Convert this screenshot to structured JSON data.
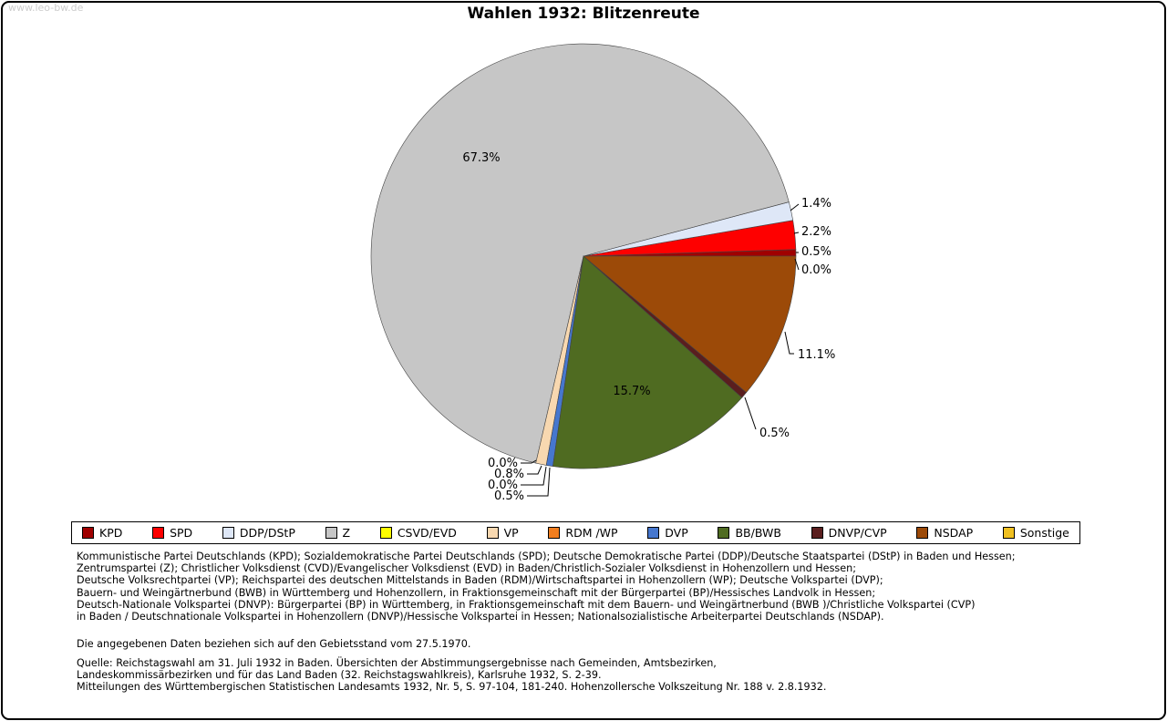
{
  "page": {
    "watermark": "www.leo-bw.de",
    "title": "Wahlen 1932: Blitzenreute"
  },
  "chart_data": {
    "type": "pie",
    "title": "Wahlen 1932: Blitzenreute",
    "unit": "percent",
    "start_angle_deg": 0,
    "direction": "counterclockwise",
    "legend_position": "bottom",
    "series": [
      {
        "name": "KPD",
        "value": 0.5,
        "color": "#a00000"
      },
      {
        "name": "SPD",
        "value": 2.2,
        "color": "#fe0000"
      },
      {
        "name": "DDP/DStP",
        "value": 1.4,
        "color": "#dee7f7"
      },
      {
        "name": "Z",
        "value": 67.3,
        "color": "#c6c6c6"
      },
      {
        "name": "CSVD/EVD",
        "value": 0.0,
        "color": "#ffff00"
      },
      {
        "name": "VP",
        "value": 0.8,
        "color": "#f8d8b0"
      },
      {
        "name": "RDM /WP",
        "value": 0.0,
        "color": "#f07d1e"
      },
      {
        "name": "DVP",
        "value": 0.5,
        "color": "#4677ce"
      },
      {
        "name": "BB/BWB",
        "value": 15.7,
        "color": "#4f6b21"
      },
      {
        "name": "DNVP/CVP",
        "value": 0.5,
        "color": "#5a1e1e"
      },
      {
        "name": "NSDAP",
        "value": 11.1,
        "color": "#9c4a08"
      },
      {
        "name": "Sonstige",
        "value": 0.0,
        "color": "#f0c020"
      }
    ]
  },
  "footer": {
    "party_definitions": [
      "Kommunistische Partei Deutschlands (KPD); Sozialdemokratische Partei Deutschlands (SPD); Deutsche Demokratische Partei (DDP)/Deutsche Staatspartei (DStP) in Baden und Hessen;",
      "Zentrumspartei (Z); Christlicher Volksdienst (CVD)/Evangelischer Volksdienst (EVD) in Baden/Christlich-Sozialer Volksdienst in Hohenzollern und Hessen;",
      "Deutsche Volksrechtpartei (VP); Reichspartei des deutschen Mittelstands in Baden (RDM)/Wirtschaftspartei in Hohenzollern (WP); Deutsche Volkspartei (DVP);",
      "Bauern- und Weingärtnerbund (BWB) in Württemberg und Hohenzollern, in Fraktionsgemeinschaft mit der Bürgerpartei (BP)/Hessisches Landvolk in Hessen;",
      "Deutsch-Nationale Volkspartei (DNVP): Bürgerpartei (BP) in Württemberg, in Fraktionsgemeinschaft mit dem Bauern- und Weingärtnerbund (BWB )/Christliche Volkspartei (CVP)",
      "in Baden / Deutschnationale Volkspartei in Hohenzollern (DNVP)/Hessische Volkspartei in Hessen; Nationalsozialistische Arbeiterpartei Deutschlands (NSDAP)."
    ],
    "note": "Die angegebenen Daten beziehen sich auf den Gebietsstand vom 27.5.1970.",
    "source": [
      "Quelle: Reichstagswahl am 31. Juli 1932 in Baden. Übersichten der Abstimmungsergebnisse nach Gemeinden, Amtsbezirken,",
      "Landeskommissärbezirken und für das Land Baden (32. Reichstagswahlkreis), Karlsruhe 1932, S. 2-39.",
      "Mitteilungen des Württembergischen Statistischen Landesamts 1932, Nr. 5, S. 97-104, 181-240. Hohenzollersche Volkszeitung Nr. 188 v. 2.8.1932."
    ]
  }
}
